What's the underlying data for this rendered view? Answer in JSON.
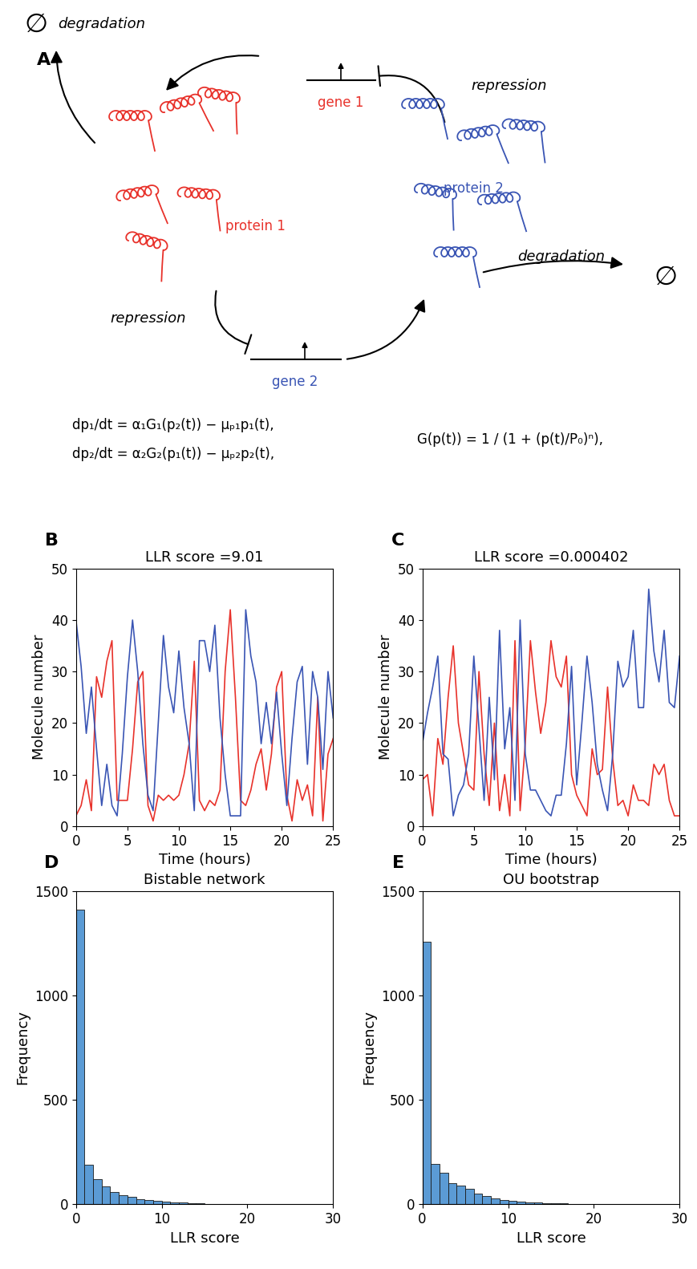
{
  "panel_A": {
    "label": "A",
    "empty_set": "∅",
    "degradation": "degradation",
    "repression": "repression",
    "gene_1": "gene 1",
    "gene_2": "gene 2",
    "protein_1": "protein 1",
    "protein_2": "protein 2",
    "equations": [
      "dp₁/dt = α₁G₁(p₂(t)) − μₚ₁p₁(t),",
      "dp₂/dt = α₂G₂(p₁(t)) − μₚ₂p₂(t),"
    ],
    "hill_function": "G(p(t)) = 1 / (1 + (p(t)/P₀)ⁿ),",
    "colors": {
      "gene_1": "#e8322b",
      "gene_2": "#3a55b4"
    }
  },
  "chart_data": [
    {
      "label": "B",
      "type": "line",
      "title": "LLR score =9.01",
      "x_label": "Time (hours)",
      "y_label": "Molecule number",
      "x": [
        0,
        0.5,
        1,
        1.5,
        2,
        2.5,
        3,
        3.5,
        4,
        4.5,
        5,
        5.5,
        6,
        6.5,
        7,
        7.5,
        8,
        8.5,
        9,
        9.5,
        10,
        10.5,
        11,
        11.5,
        12,
        12.5,
        13,
        13.5,
        14,
        14.5,
        15,
        15.5,
        16,
        16.5,
        17,
        17.5,
        18,
        18.5,
        19,
        19.5,
        20,
        20.5,
        21,
        21.5,
        22,
        22.5,
        23,
        23.5,
        24,
        24.5,
        25
      ],
      "series": [
        {
          "color": "#e8322b",
          "values": [
            2,
            4,
            9,
            3,
            29,
            25,
            32,
            36,
            5,
            5,
            5,
            15,
            28,
            30,
            4,
            1,
            6,
            5,
            6,
            5,
            6,
            10,
            16,
            32,
            5,
            3,
            5,
            4,
            7,
            30,
            42,
            25,
            5,
            4,
            7,
            12,
            15,
            7,
            14,
            27,
            30,
            6,
            1,
            9,
            5,
            8,
            2,
            25,
            1,
            14,
            17
          ]
        },
        {
          "color": "#3a55b4",
          "values": [
            40,
            31,
            18,
            27,
            15,
            4,
            12,
            4,
            2,
            14,
            29,
            40,
            30,
            16,
            6,
            3,
            20,
            37,
            27,
            22,
            34,
            23,
            16,
            3,
            36,
            36,
            30,
            39,
            21,
            10,
            2,
            2,
            2,
            42,
            33,
            28,
            16,
            24,
            16,
            26,
            14,
            4,
            17,
            28,
            31,
            12,
            30,
            25,
            11,
            30,
            21
          ]
        }
      ],
      "xlim": [
        0,
        25
      ],
      "xticks": [
        0,
        5,
        10,
        15,
        20,
        25
      ],
      "ylim": [
        0,
        50
      ],
      "yticks": [
        0,
        10,
        20,
        30,
        40,
        50
      ]
    },
    {
      "label": "C",
      "type": "line",
      "title": "LLR score =0.000402",
      "x_label": "Time (hours)",
      "y_label": "Molecule number",
      "x": [
        0,
        0.5,
        1,
        1.5,
        2,
        2.5,
        3,
        3.5,
        4,
        4.5,
        5,
        5.5,
        6,
        6.5,
        7,
        7.5,
        8,
        8.5,
        9,
        9.5,
        10,
        10.5,
        11,
        11.5,
        12,
        12.5,
        13,
        13.5,
        14,
        14.5,
        15,
        15.5,
        16,
        16.5,
        17,
        17.5,
        18,
        18.5,
        19,
        19.5,
        20,
        20.5,
        21,
        21.5,
        22,
        22.5,
        23,
        23.5,
        24,
        24.5,
        25
      ],
      "series": [
        {
          "color": "#e8322b",
          "values": [
            9,
            10,
            2,
            17,
            12,
            25,
            35,
            20,
            14,
            8,
            7,
            30,
            14,
            4,
            20,
            3,
            10,
            2,
            36,
            3,
            16,
            36,
            26,
            18,
            24,
            36,
            29,
            27,
            33,
            10,
            6,
            4,
            2,
            15,
            10,
            11,
            27,
            13,
            4,
            5,
            2,
            8,
            5,
            5,
            4,
            12,
            10,
            12,
            5,
            2,
            2
          ]
        },
        {
          "color": "#3a55b4",
          "values": [
            16,
            22,
            27,
            33,
            14,
            13,
            2,
            6,
            8,
            14,
            33,
            19,
            5,
            25,
            9,
            38,
            15,
            23,
            5,
            40,
            14,
            7,
            7,
            5,
            3,
            2,
            6,
            6,
            16,
            31,
            8,
            20,
            33,
            24,
            12,
            7,
            3,
            14,
            32,
            27,
            29,
            38,
            23,
            23,
            46,
            34,
            28,
            38,
            24,
            23,
            33
          ]
        }
      ],
      "xlim": [
        0,
        25
      ],
      "xticks": [
        0,
        5,
        10,
        15,
        20,
        25
      ],
      "ylim": [
        0,
        50
      ],
      "yticks": [
        0,
        10,
        20,
        30,
        40,
        50
      ]
    },
    {
      "label": "D",
      "type": "histogram",
      "title": "Bistable network",
      "x_label": "LLR score",
      "y_label": "Frequency",
      "color": "#5b9bd5",
      "bins": [
        0,
        1,
        2,
        3,
        4,
        5,
        6,
        7,
        8,
        9,
        10,
        11,
        12,
        13,
        14,
        15,
        16,
        17,
        18,
        19,
        20,
        21,
        22,
        23,
        24,
        25,
        26,
        27,
        28,
        29,
        30
      ],
      "counts": [
        1410,
        190,
        120,
        85,
        60,
        45,
        35,
        25,
        22,
        18,
        12,
        10,
        7,
        5,
        5,
        3,
        2,
        2,
        1,
        1,
        1,
        1,
        0,
        0,
        0,
        0,
        0,
        0,
        0,
        0
      ],
      "xlim": [
        0,
        30
      ],
      "xticks": [
        0,
        10,
        20,
        30
      ],
      "ylim": [
        0,
        1500
      ],
      "yticks": [
        0,
        500,
        1000,
        1500
      ]
    },
    {
      "label": "E",
      "type": "histogram",
      "title": "OU bootstrap",
      "x_label": "LLR score",
      "y_label": "Frequency",
      "color": "#5b9bd5",
      "bins": [
        0,
        1,
        2,
        3,
        4,
        5,
        6,
        7,
        8,
        9,
        10,
        11,
        12,
        13,
        14,
        15,
        16,
        17,
        18,
        19,
        20,
        21,
        22,
        23,
        24,
        25,
        26,
        27,
        28,
        29,
        30
      ],
      "counts": [
        1255,
        195,
        150,
        100,
        90,
        75,
        50,
        38,
        28,
        20,
        15,
        12,
        10,
        8,
        6,
        5,
        4,
        3,
        2,
        2,
        1,
        1,
        1,
        0,
        0,
        0,
        0,
        0,
        0,
        0
      ],
      "xlim": [
        0,
        30
      ],
      "xticks": [
        0,
        10,
        20,
        30
      ],
      "ylim": [
        0,
        1500
      ],
      "yticks": [
        0,
        500,
        1000,
        1500
      ]
    }
  ]
}
